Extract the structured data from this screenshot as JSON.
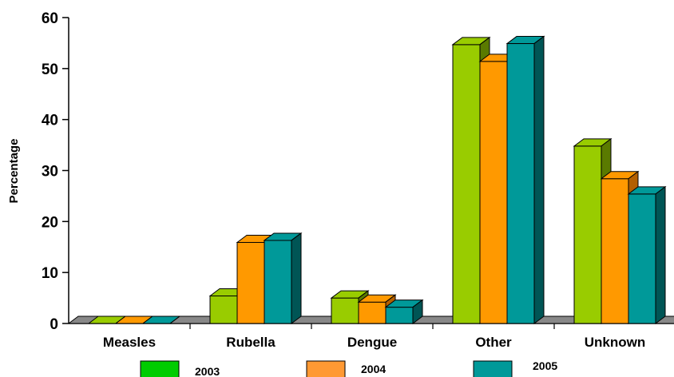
{
  "chart_data": {
    "type": "bar",
    "style": "3d-clustered-column",
    "ylabel": "Percentage",
    "xlabel": "",
    "ylim": [
      0,
      60
    ],
    "yticks": [
      "0",
      "10",
      "20",
      "30",
      "40",
      "50",
      "60"
    ],
    "categories": [
      "Measles",
      "Rubella",
      "Dengue",
      "Other",
      "Unknown"
    ],
    "series": [
      {
        "name": "2003",
        "values": [
          0,
          5.4,
          5.0,
          54.7,
          34.8
        ],
        "color": "#99cc00",
        "side_color": "#5a7a00",
        "legend_color": "#00cc00"
      },
      {
        "name": "2004",
        "values": [
          0,
          15.9,
          4.2,
          51.4,
          28.4
        ],
        "color": "#ff9900",
        "side_color": "#b35f00",
        "legend_color": "#ff9933"
      },
      {
        "name": "2005",
        "values": [
          0,
          16.3,
          3.2,
          54.9,
          25.4
        ],
        "color": "#009999",
        "side_color": "#005555",
        "legend_color": "#009999"
      }
    ],
    "legend_position": "bottom",
    "grid": false
  }
}
